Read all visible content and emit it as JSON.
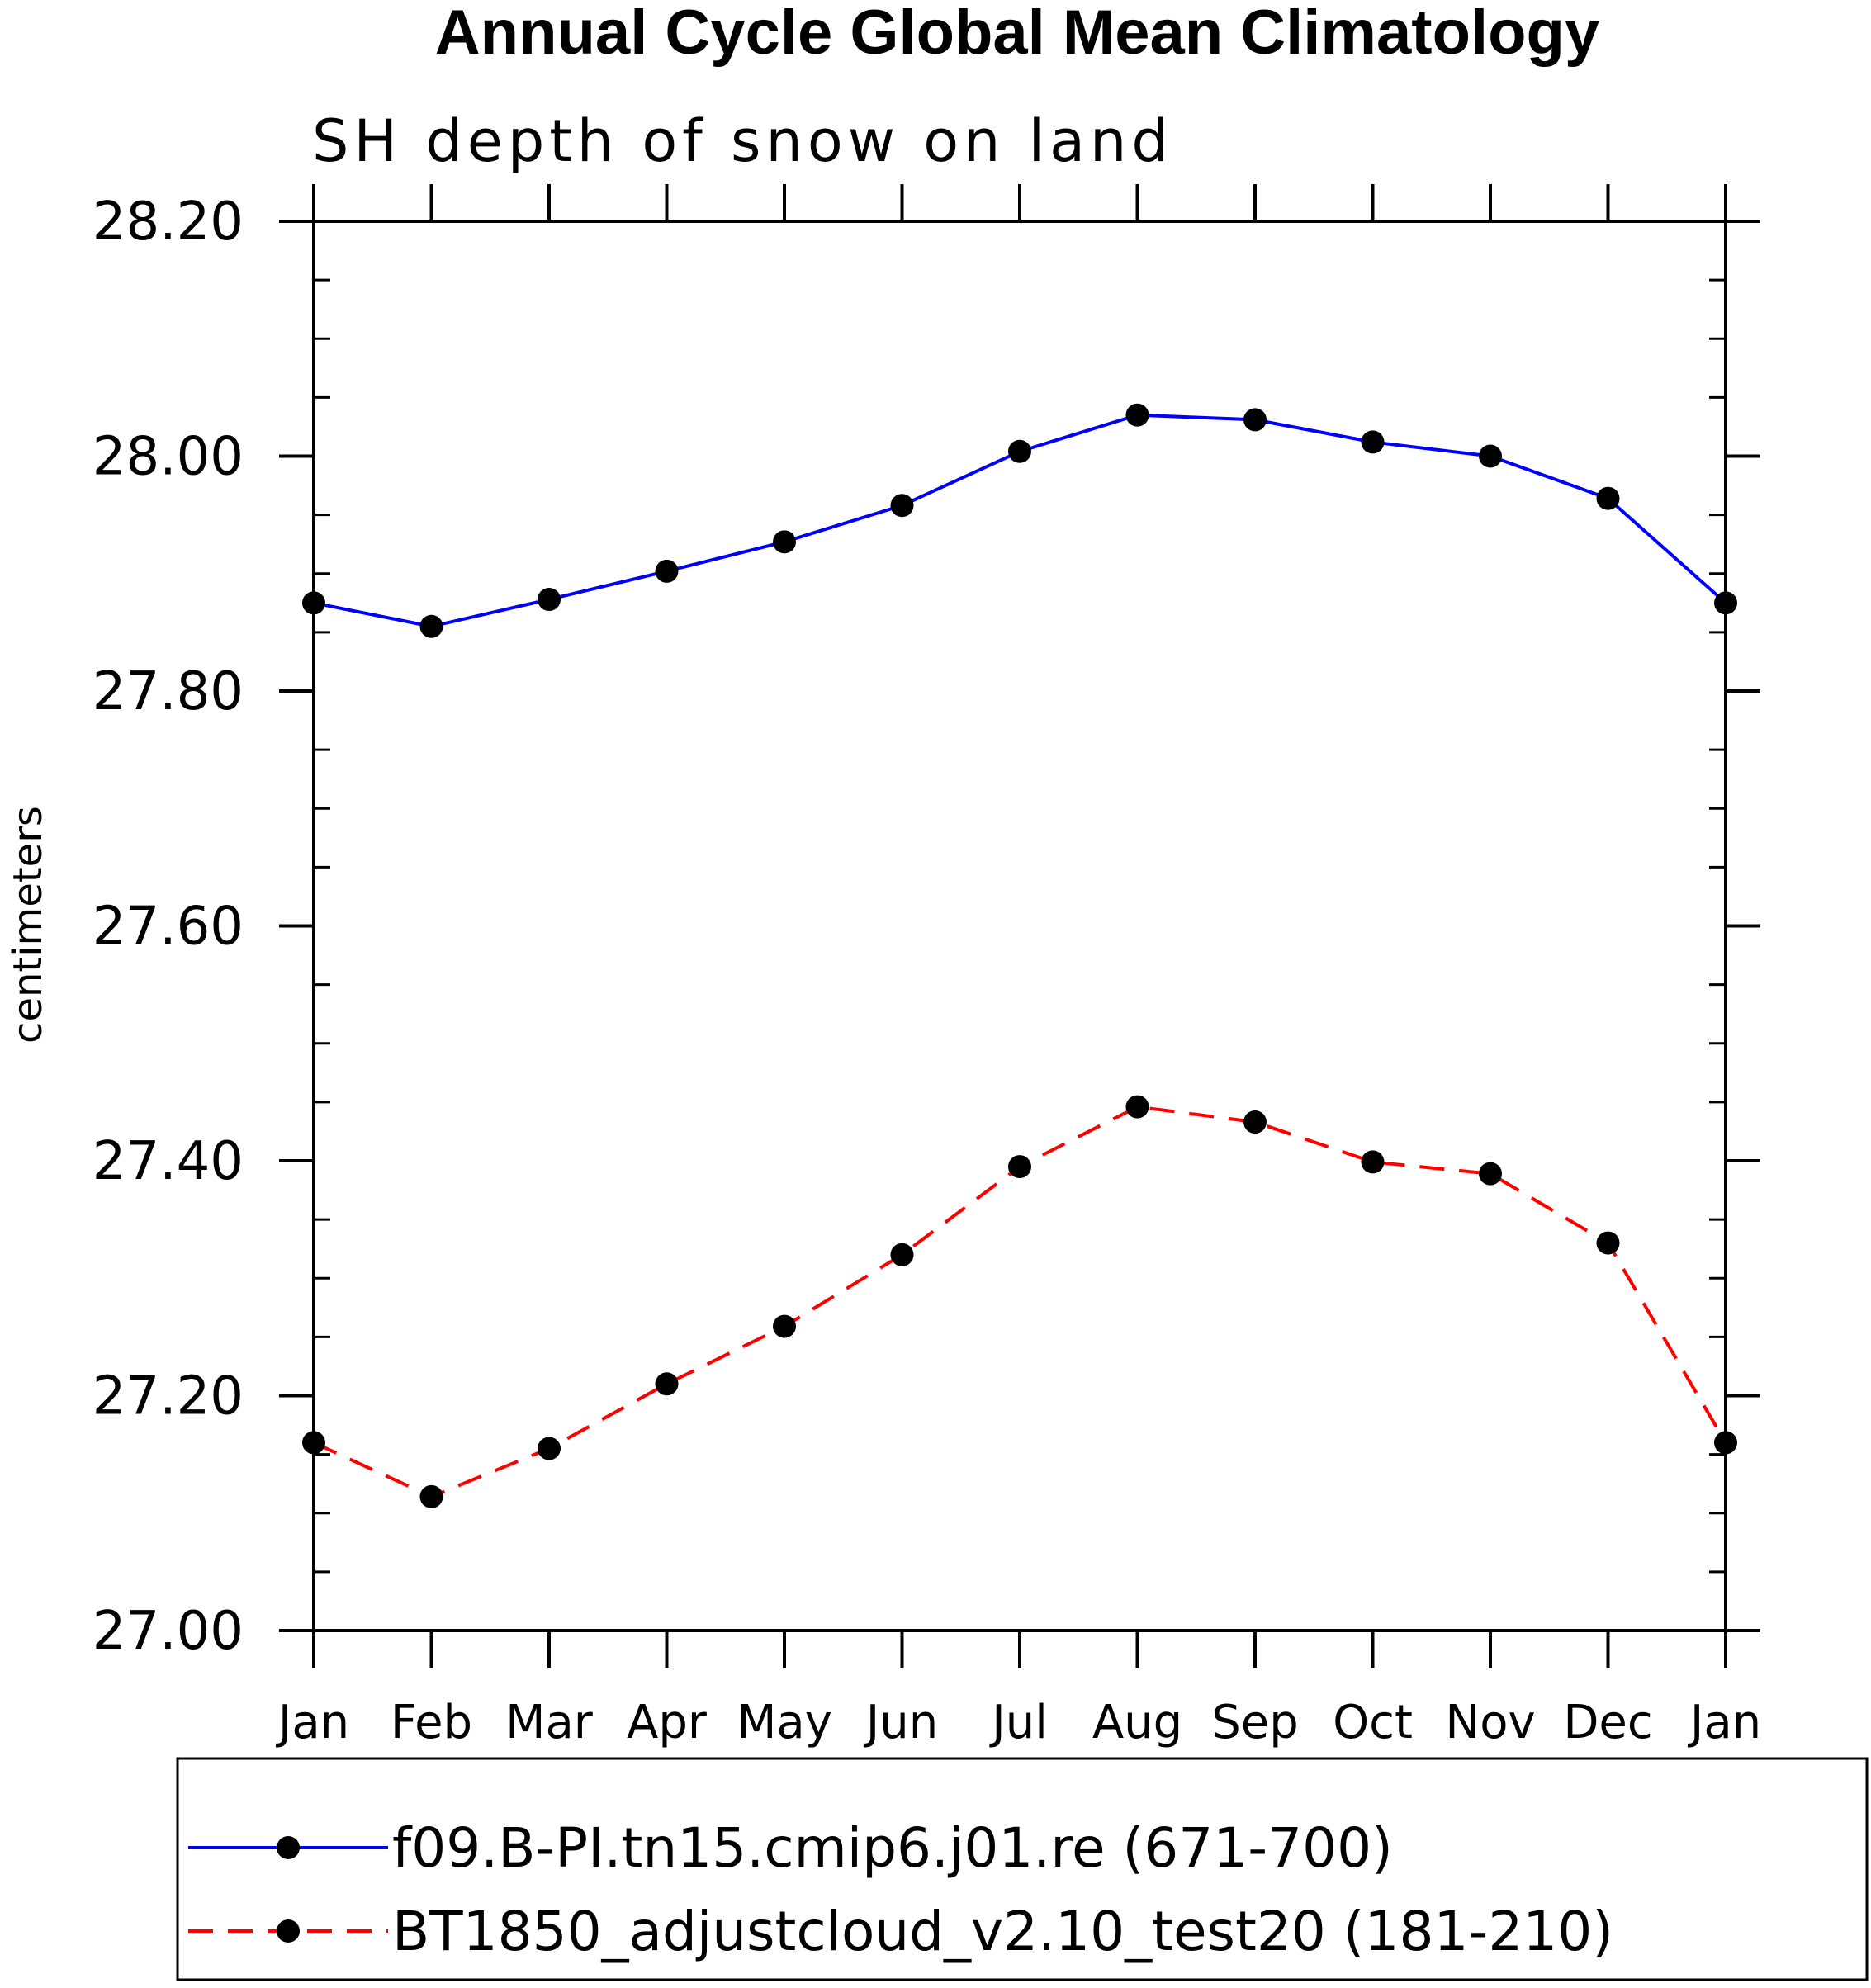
{
  "chart_data": {
    "type": "line",
    "title": "Annual Cycle Global Mean Climatology",
    "subtitle": "SH depth of snow on land",
    "xlabel": "",
    "ylabel": "centimeters",
    "categories": [
      "Jan",
      "Feb",
      "Mar",
      "Apr",
      "May",
      "Jun",
      "Jul",
      "Aug",
      "Sep",
      "Oct",
      "Nov",
      "Dec",
      "Jan"
    ],
    "ylim": [
      27.0,
      28.2
    ],
    "yticks": [
      "27.00",
      "27.20",
      "27.40",
      "27.60",
      "27.80",
      "28.00",
      "28.20"
    ],
    "series": [
      {
        "name": "f09.B-PI.tn15.cmip6.j01.re (671-700)",
        "color": "#0000ff",
        "dash": "solid",
        "marker": "filled-circle",
        "values": [
          27.875,
          27.855,
          27.878,
          27.902,
          27.927,
          27.958,
          28.004,
          28.035,
          28.031,
          28.012,
          28.0,
          27.964,
          27.875
        ]
      },
      {
        "name": "BT1850_adjustcloud_v2.10_test20 (181-210)",
        "color": "#ff0000",
        "dash": "dashed",
        "marker": "filled-circle",
        "values": [
          27.16,
          27.114,
          27.155,
          27.21,
          27.259,
          27.32,
          27.395,
          27.446,
          27.433,
          27.399,
          27.389,
          27.33,
          27.16
        ]
      }
    ],
    "legend_position": "bottom"
  }
}
